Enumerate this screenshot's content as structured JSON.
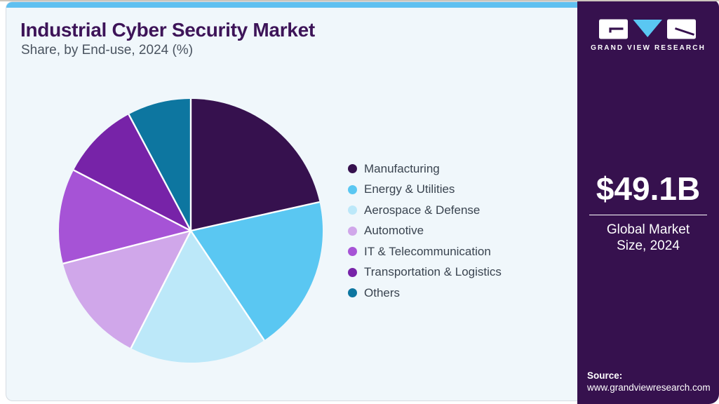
{
  "header": {
    "title": "Industrial Cyber Security Market",
    "subtitle": "Share, by End-use, 2024 (%)"
  },
  "chart_data": {
    "type": "pie",
    "title": "Industrial Cyber Security Market Share, by End-use, 2024 (%)",
    "unit": "%",
    "start_angle_deg": 0,
    "direction": "clockwise",
    "legend_position": "right",
    "segments": [
      {
        "label": "Manufacturing",
        "value": 21.5,
        "color": "#36114e"
      },
      {
        "label": "Energy & Utilities",
        "value": 19.1,
        "color": "#5ac7f2"
      },
      {
        "label": "Aerospace & Defense",
        "value": 16.9,
        "color": "#bce8f9"
      },
      {
        "label": "Automotive",
        "value": 13.5,
        "color": "#d0a7ea"
      },
      {
        "label": "IT & Telecommunication",
        "value": 11.6,
        "color": "#a653d6"
      },
      {
        "label": "Transportation & Logistics",
        "value": 9.6,
        "color": "#7723a8"
      },
      {
        "label": "Others",
        "value": 7.8,
        "color": "#0d76a0"
      }
    ]
  },
  "sidebar": {
    "brand_name": "GRAND VIEW RESEARCH",
    "market_size_value": "$49.1B",
    "market_size_label": "Global Market Size, 2024",
    "source_label": "Source:",
    "source_url": "www.grandviewresearch.com",
    "panel_color": "#36114e",
    "logo_triangle_color": "#5ac7f2"
  },
  "theme": {
    "accent_bar_color": "#5fc0f0",
    "card_background": "#f0f7fb",
    "title_color": "#3d1458",
    "subtitle_color": "#4a5460",
    "legend_text_color": "#3a4450",
    "slice_separator_color": "#ffffff"
  }
}
